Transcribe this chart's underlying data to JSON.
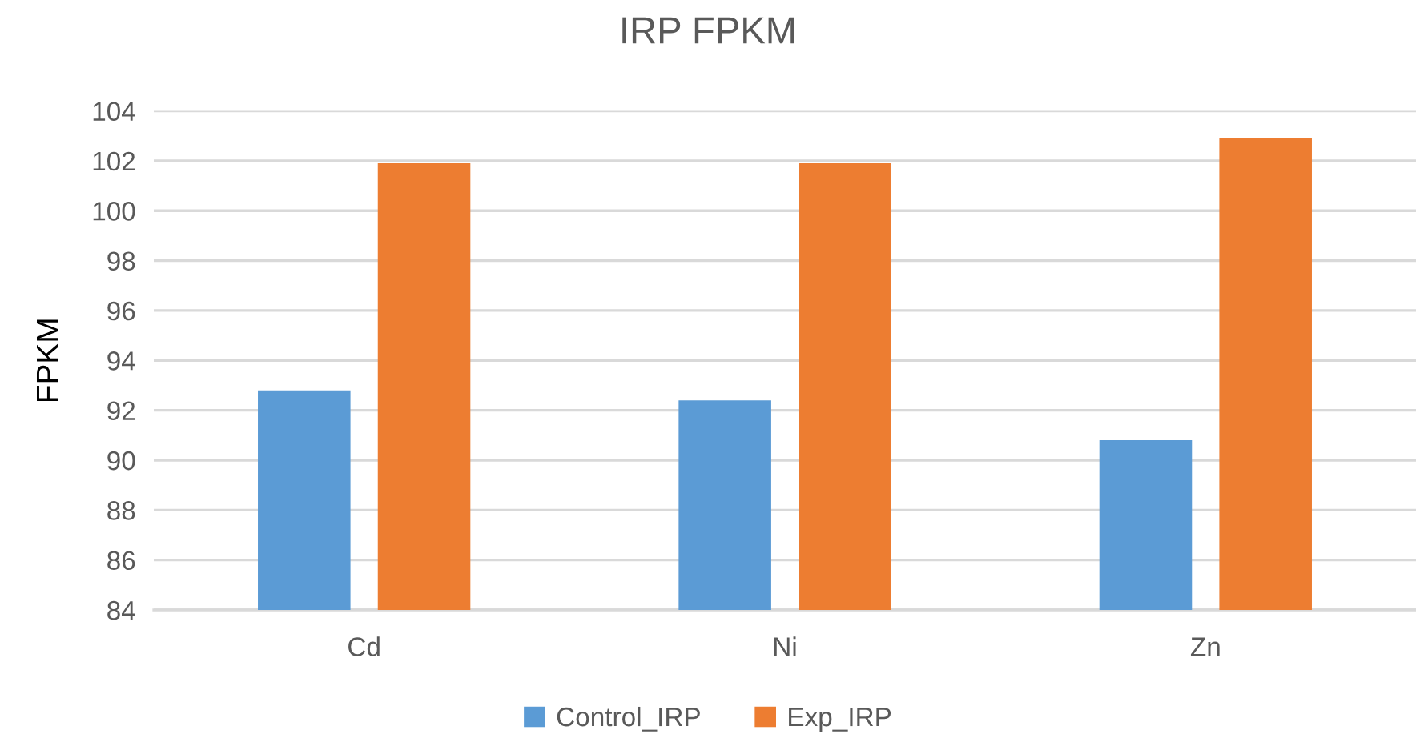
{
  "chart_data": {
    "type": "bar",
    "title": "IRP FPKM",
    "ylabel": "FPKM",
    "categories": [
      "Cd",
      "Ni",
      "Zn"
    ],
    "series": [
      {
        "name": "Control_IRP",
        "color": "#5b9bd5",
        "values": [
          92.8,
          92.4,
          90.8
        ]
      },
      {
        "name": "Exp_IRP",
        "color": "#ed7d31",
        "values": [
          101.9,
          101.9,
          102.9
        ]
      }
    ],
    "ylim": [
      84,
      104
    ],
    "yticks": [
      84,
      86,
      88,
      90,
      92,
      94,
      96,
      98,
      100,
      102,
      104
    ],
    "grid": "y",
    "legend": "bottom"
  }
}
